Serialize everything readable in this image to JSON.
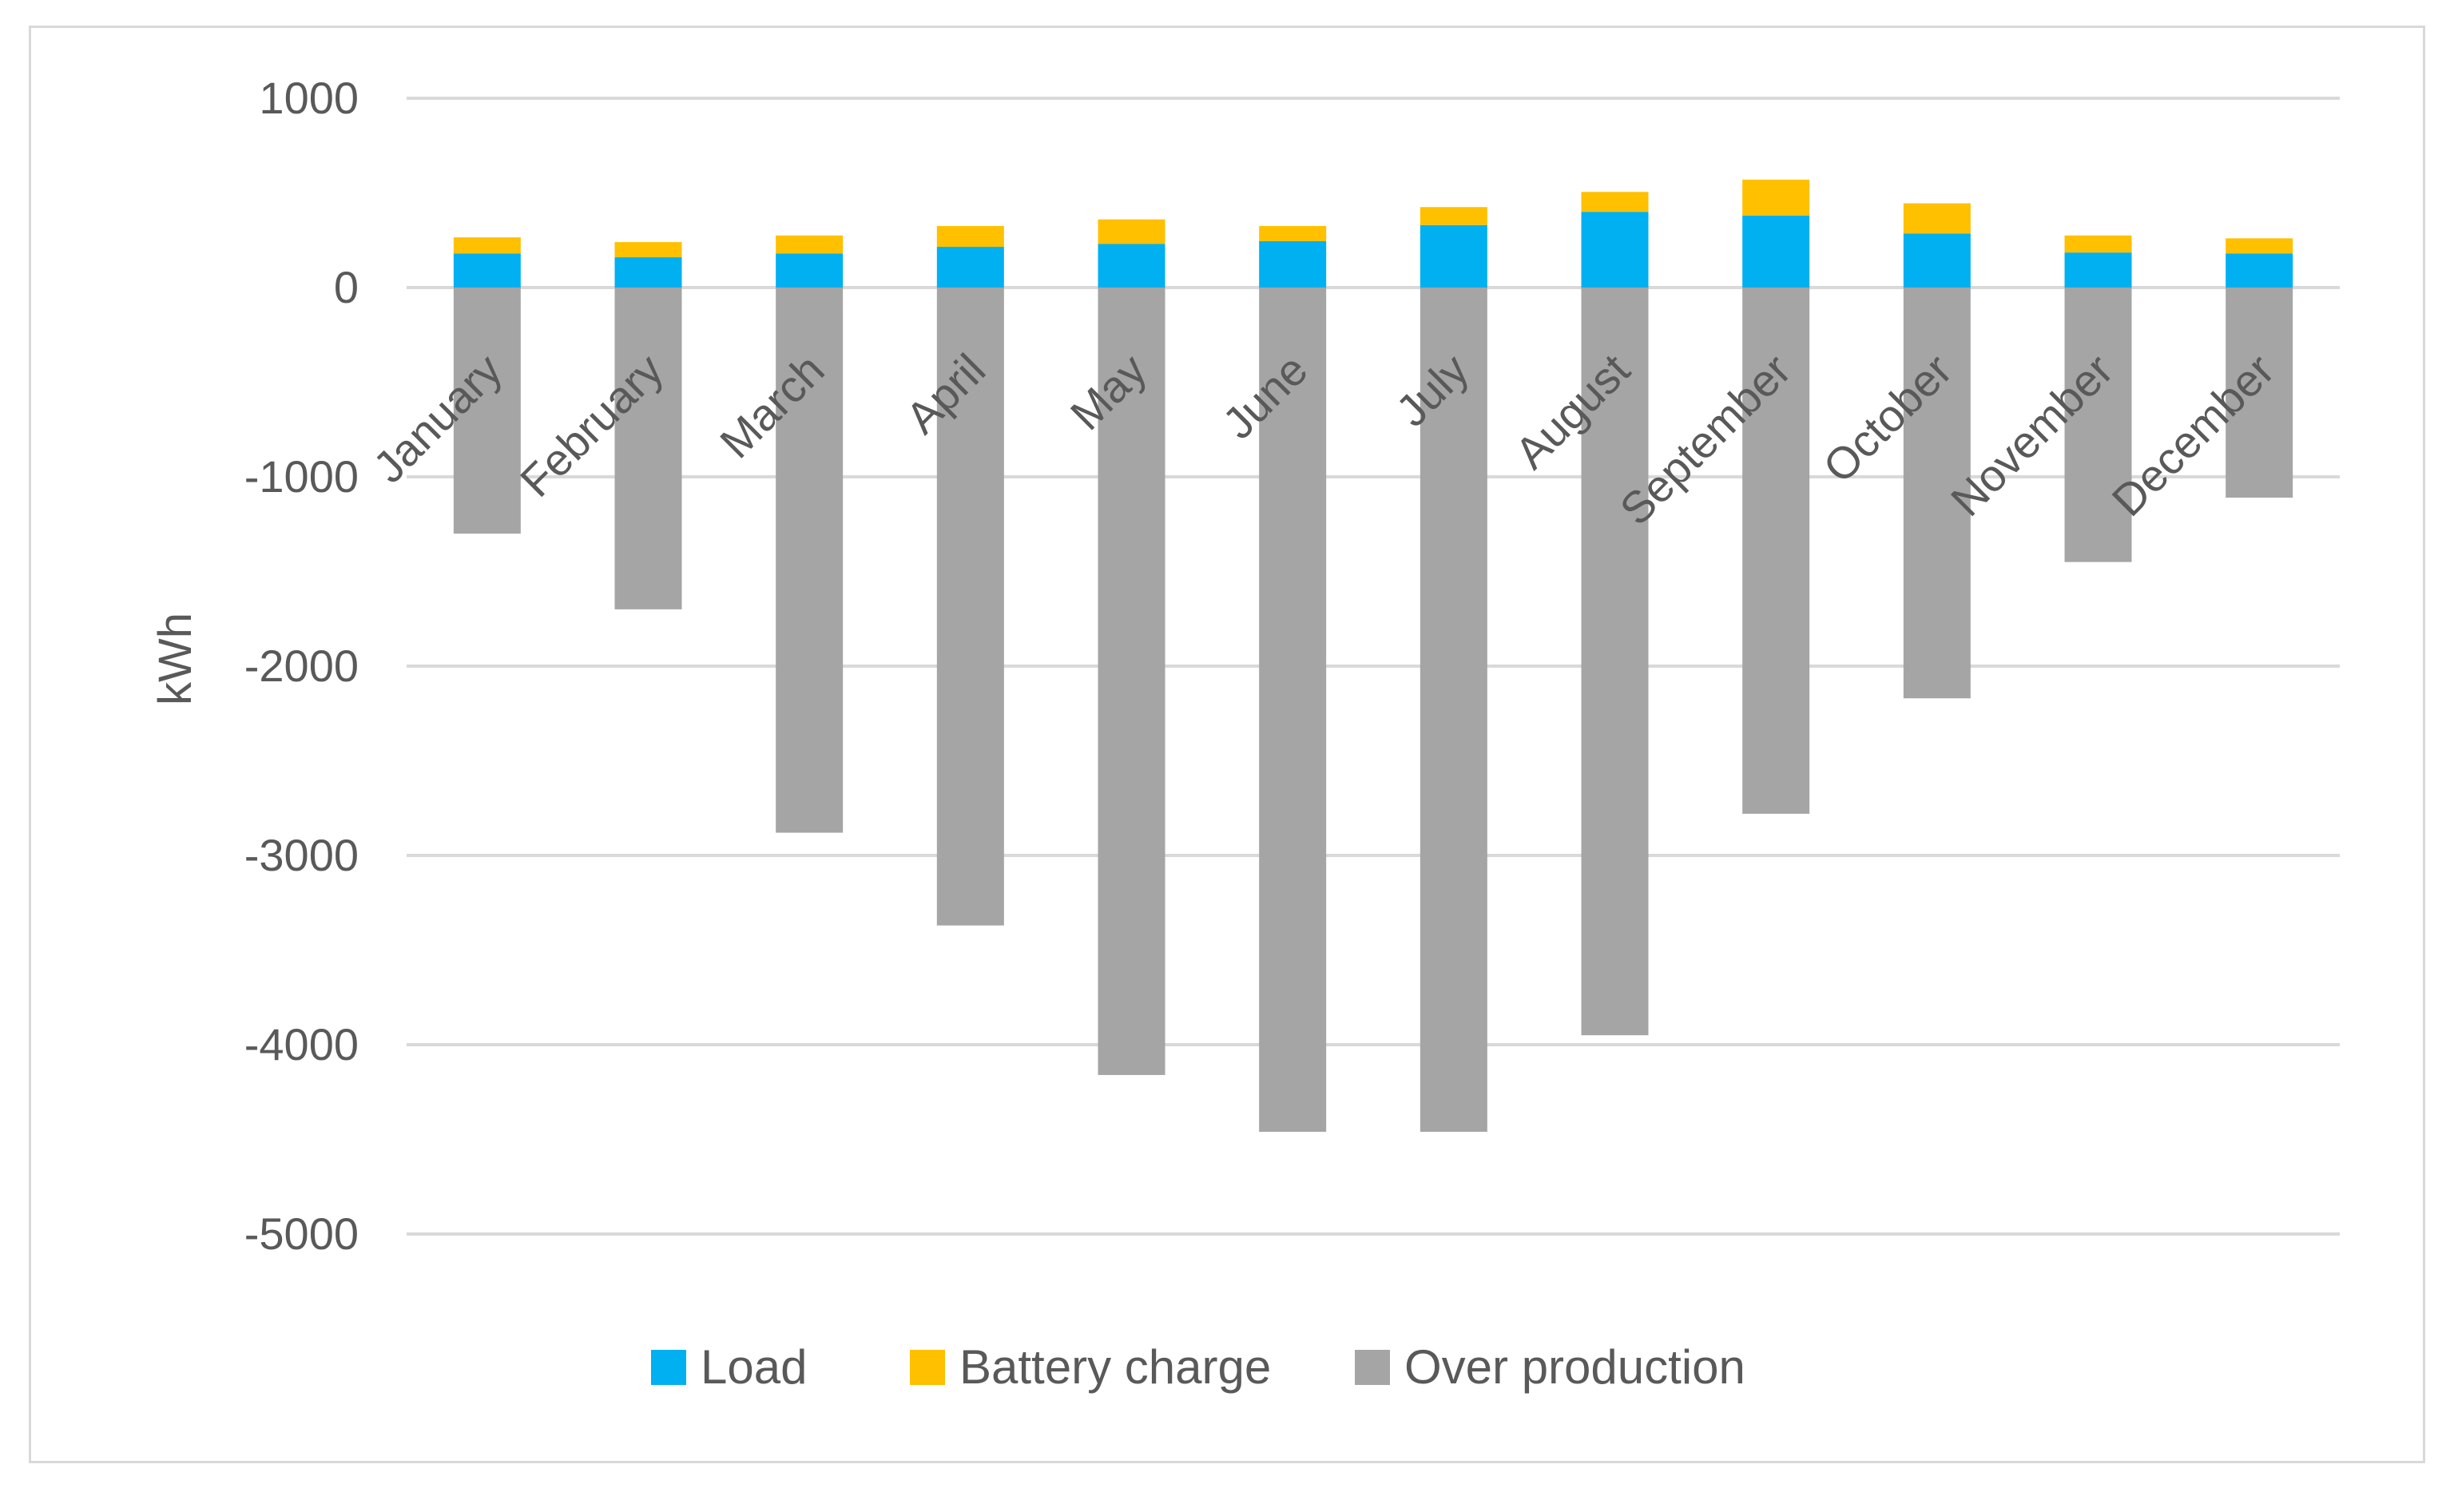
{
  "chart_data": {
    "type": "bar",
    "stacked": true,
    "title": "",
    "xlabel": "",
    "ylabel": "kWh",
    "ylim": [
      -5000,
      1000
    ],
    "yticks": [
      1000,
      0,
      -1000,
      -2000,
      -3000,
      -4000,
      -5000
    ],
    "yticks_labels": [
      "1000",
      "0",
      "-1000",
      "-2000",
      "-3000",
      "-4000",
      "-5000"
    ],
    "grid": true,
    "legend_position": "bottom",
    "categories": [
      "January",
      "February",
      "March",
      "April",
      "May",
      "June",
      "July",
      "August",
      "September",
      "October",
      "November",
      "December"
    ],
    "series": [
      {
        "name": "Load",
        "color": "#00B0F0",
        "values": [
          180,
          160,
          180,
          215,
          230,
          245,
          330,
          400,
          380,
          285,
          185,
          180
        ]
      },
      {
        "name": "Battery charge",
        "color": "#FFC000",
        "values": [
          85,
          80,
          95,
          110,
          130,
          80,
          95,
          105,
          190,
          160,
          90,
          80
        ]
      },
      {
        "name": "Over production",
        "color": "#A5A5A5",
        "values": [
          -1300,
          -1700,
          -2880,
          -3370,
          -4160,
          -4460,
          -4460,
          -3950,
          -2780,
          -2170,
          -1450,
          -1110
        ]
      }
    ]
  }
}
